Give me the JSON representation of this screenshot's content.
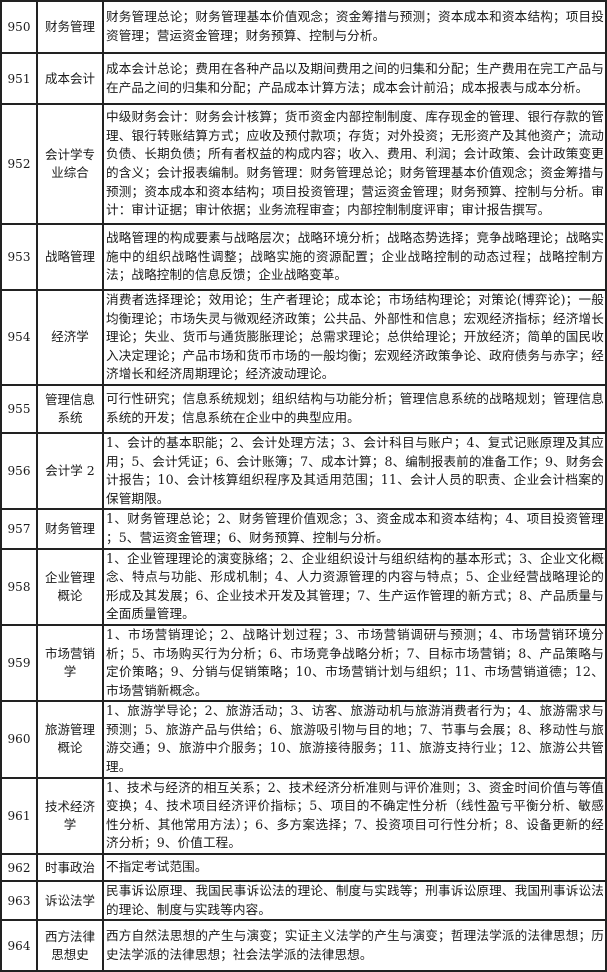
{
  "rows": [
    {
      "code": "950",
      "name": "财务管理",
      "content": "财务管理总论；财务管理基本价值观念；资金筹措与预测；资本成本和资本结构；项目投资管理；营运资金管理；财务预算、控制与分析。"
    },
    {
      "code": "951",
      "name": "成本会计",
      "content": "成本会计总论；费用在各种产品以及期间费用之间的归集和分配；生产费用在完工产品与在产品之间的归集和分配；产品成本计算方法；成本会计前沿；成本报表与成本分析。"
    },
    {
      "code": "952",
      "name": "会计学专业综合",
      "content": "中级财务会计：财务会计核算；货币资金内部控制制度、库存现金的管理、银行存款的管理、银行转账结算方式；应收及预付款项；存货；对外投资；无形资产及其他资产；流动负债、长期负债；所有者权益的构成内容；收入、费用、利润；会计政策、会计政策变更的含义；会计报表编制。财务管理：财务管理总论；财务管理基本价值观念；资金筹措与预测；资本成本和资本结构；项目投资管理；营运资金管理；财务预算、控制与分析。审计：审计证据；审计依据；业务流程审查；内部控制制度评审；审计报告撰写。"
    },
    {
      "code": "953",
      "name": "战略管理",
      "content": " 战略管理的构成要素与战略层次；战略环境分析；战略态势选择；竞争战略理论；战略实施中的组织战略性调整；战略实施的资源配置；企业战略控制的动态过程；战略控制方法；战略控制的信息反馈；企业战略变革。"
    },
    {
      "code": "954",
      "name": "经济学",
      "content": "消费者选择理论；效用论；生产者理论；成本论；市场结构理论；对策论(博弈论)；一般均衡理论；市场失灵与微观经济政策；公共品、外部性和信息；宏观经济指标；经济增长理论；失业、货币与通货膨胀理论；总需求理论；总供给理论；开放经济；简单的国民收入决定理论；产品市场和货币市场的一般均衡；宏观经济政策争论、政府债务与赤字；经济增长和经济周期理论；经济波动理论。"
    },
    {
      "code": "955",
      "name": "管理信息系统",
      "content": "可行性研究；信息系统规划；组织结构与功能分析；管理信息系统的战略规划；管理信息系统的开发；信息系统在企业中的典型应用。"
    },
    {
      "code": "956",
      "name": "会计学 2",
      "content": "1、会计的基本职能；2、会计处理方法；3、会计科目与账户；4、复式记账原理及其应用；5、会计凭证；6、会计账簿；7、成本计算；8、编制报表前的准备工作；9、财务会计报告；10、会计核算组织程序及其适用范围；11、会计人员的职责、企业会计档案的保管期限。"
    },
    {
      "code": "957",
      "name": "财务管理",
      "content": "1、财务管理总论；2、财务管理价值观念；3、资金成本和资本结构；4、项目投资管理 ；5、营运资金管理；6、财务预算、控制与分析。"
    },
    {
      "code": "958",
      "name": "企业管理概论",
      "content": "1、企业管理理论的演变脉络；2、企业组织设计与组织结构的基本形式；3、企业文化概念、特点与功能、形成机制；4、人力资源管理的内容与特点；5、企业经营战略理论的形成及其发展；6、企业技术开发及其管理；7、生产运作管理的新方式；8、产品质量与全面质量管理。"
    },
    {
      "code": "959",
      "name": "市场营销学",
      "content": "1、市场营销理论；2、战略计划过程；3、市场营销调研与预测；4、市场营销环境分析；5、市场购买行为分析；6、市场竞争战略分析；7、目标市场营销；8、产品策略与定价策略；9、分销与促销策略；10、市场营销计划与组织；11、市场营销道德；12、市场营销新概念。"
    },
    {
      "code": "960",
      "name": "旅游管理概论",
      "content": "1、旅游学导论；2、旅游活动；3、访客、旅游动机与旅游消费者行为；4、旅游需求与预测；5、旅游产品与供给；6、旅游吸引物与目的地；7、节事与会展；8、移动性与旅游交通；9、旅游中介服务；10、旅游接待服务；11、旅游支持行业；12、旅游公共管理。"
    },
    {
      "code": "961",
      "name": "技术经济学",
      "content": "1、技术与经济的相互关系；2、技术经济分析准则与评价准则；3、资金时间价值与等值变换；4、技术项目经济评价指标；5、项目的不确定性分析（线性盈亏平衡分析、敏感性分析、其他常用方法）；6、多方案选择；7、投资项目可行性分析；8、设备更新的经济分析；9、价值工程。"
    },
    {
      "code": "962",
      "name": "时事政治",
      "content": "不指定考试范围。"
    },
    {
      "code": "963",
      "name": "诉讼法学",
      "content": "民事诉讼原理、我国民事诉讼法的理论、制度与实践等；刑事诉讼原理、我国刑事诉讼法的理论、制度与实践等内容。"
    },
    {
      "code": "964",
      "name": "西方法律思想史",
      "content": "西方自然法思想的产生与演变；实证主义法学的产生与演变；哲理法学派的法律思想；历史法学派的法律思想；社会法学派的法律思想。"
    }
  ]
}
